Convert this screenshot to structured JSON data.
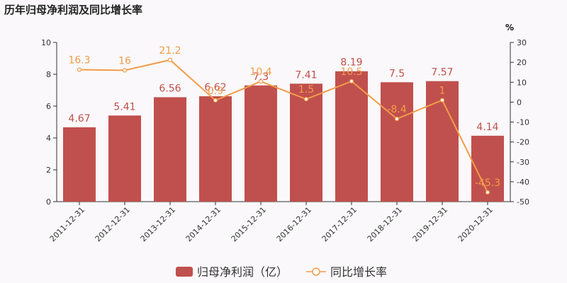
{
  "chart_data": {
    "type": "bar",
    "title": "历年归母净利润及同比增长率",
    "categories": [
      "2011-12-31",
      "2012-12-31",
      "2013-12-31",
      "2014-12-31",
      "2015-12-31",
      "2016-12-31",
      "2017-12-31",
      "2018-12-31",
      "2019-12-31",
      "2020-12-31"
    ],
    "series": [
      {
        "name": "归母净利润（亿）",
        "type": "bar",
        "axis": "left",
        "color": "#c0504d",
        "values": [
          4.67,
          5.41,
          6.56,
          6.62,
          7.3,
          7.41,
          8.19,
          7.5,
          7.57,
          4.14
        ],
        "labels": [
          "4.67",
          "5.41",
          "6.56",
          "6.62",
          "7.3",
          "7.41",
          "8.19",
          "7.5",
          "7.57",
          "4.14"
        ]
      },
      {
        "name": "同比增长率",
        "type": "line",
        "axis": "right",
        "color": "#f39c4a",
        "values": [
          16.3,
          16,
          21.2,
          0.9,
          10.4,
          1.5,
          10.5,
          -8.4,
          1,
          -45.3
        ],
        "labels": [
          "16.3",
          "16",
          "21.2",
          "0.9",
          "10.4",
          "1.5",
          "10.5",
          "-8.4",
          "1",
          "-45.3"
        ]
      }
    ],
    "left_axis": {
      "min": 0,
      "max": 10,
      "ticks": [
        "0",
        "2",
        "4",
        "6",
        "8",
        "10"
      ]
    },
    "right_axis": {
      "min": -50,
      "max": 30,
      "unit": "%",
      "ticks": [
        "-50",
        "-40",
        "-30",
        "-20",
        "-10",
        "0",
        "10",
        "20",
        "30"
      ]
    },
    "grid": false,
    "legend_position": "bottom"
  }
}
